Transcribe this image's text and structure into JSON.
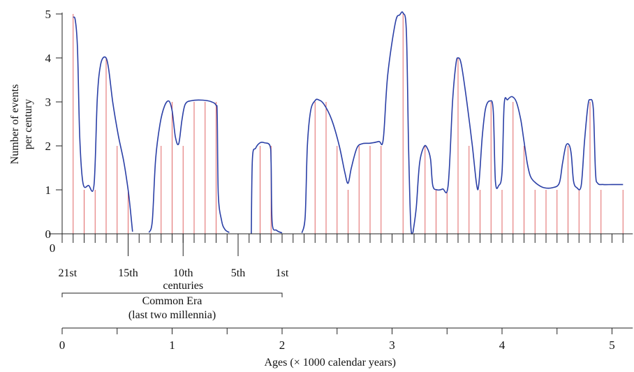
{
  "chart_data": {
    "type": "line",
    "ylabel": "Number of events per century",
    "ylabel_lines": [
      "Number of events",
      "per century"
    ],
    "xlabel": "Ages (× 1000 calendar years)",
    "ylim": [
      0,
      5
    ],
    "xlim": [
      0,
      5.1
    ],
    "yticks": [
      "0",
      "1",
      "2",
      "3",
      "4",
      "5"
    ],
    "xticks": [
      "0",
      "1",
      "2",
      "3",
      "4",
      "5"
    ],
    "century_labels": [
      {
        "x": 0.05,
        "label": "21st"
      },
      {
        "x": 0.6,
        "label": "15th"
      },
      {
        "x": 1.1,
        "label": "10th"
      },
      {
        "x": 1.6,
        "label": "5th"
      },
      {
        "x": 2.0,
        "label": "1st"
      }
    ],
    "century_axis_title": "centuries",
    "common_era_label": [
      "Common Era",
      "(last two millennia)"
    ],
    "common_era_range": [
      0,
      2.0
    ],
    "lower_axis_zero_label": "0",
    "colors": {
      "curve": "#2a3fa6",
      "bars": "#e06666",
      "axis": "#222222"
    },
    "event_bars": [
      {
        "x": 0.1,
        "v": 5
      },
      {
        "x": 0.2,
        "v": 1
      },
      {
        "x": 0.3,
        "v": 1
      },
      {
        "x": 0.4,
        "v": 4
      },
      {
        "x": 0.5,
        "v": 2
      },
      {
        "x": 0.6,
        "v": 1
      },
      {
        "x": 0.9,
        "v": 2
      },
      {
        "x": 1.0,
        "v": 3
      },
      {
        "x": 1.1,
        "v": 2
      },
      {
        "x": 1.2,
        "v": 3
      },
      {
        "x": 1.3,
        "v": 3
      },
      {
        "x": 1.4,
        "v": 3
      },
      {
        "x": 1.8,
        "v": 2
      },
      {
        "x": 1.9,
        "v": 2
      },
      {
        "x": 2.3,
        "v": 3
      },
      {
        "x": 2.4,
        "v": 3
      },
      {
        "x": 2.5,
        "v": 2
      },
      {
        "x": 2.6,
        "v": 1
      },
      {
        "x": 2.7,
        "v": 2
      },
      {
        "x": 2.8,
        "v": 2
      },
      {
        "x": 2.9,
        "v": 2
      },
      {
        "x": 3.1,
        "v": 5
      },
      {
        "x": 3.3,
        "v": 2
      },
      {
        "x": 3.4,
        "v": 1
      },
      {
        "x": 3.5,
        "v": 1
      },
      {
        "x": 3.6,
        "v": 4
      },
      {
        "x": 3.7,
        "v": 2
      },
      {
        "x": 3.8,
        "v": 1
      },
      {
        "x": 3.9,
        "v": 3
      },
      {
        "x": 4.0,
        "v": 1
      },
      {
        "x": 4.1,
        "v": 3
      },
      {
        "x": 4.2,
        "v": 2
      },
      {
        "x": 4.3,
        "v": 1
      },
      {
        "x": 4.4,
        "v": 1
      },
      {
        "x": 4.5,
        "v": 1
      },
      {
        "x": 4.6,
        "v": 2
      },
      {
        "x": 4.7,
        "v": 1
      },
      {
        "x": 4.8,
        "v": 3
      },
      {
        "x": 4.9,
        "v": 1
      },
      {
        "x": 5.1,
        "v": 1
      }
    ],
    "curve_segments": [
      [
        [
          0.1,
          4.93
        ],
        [
          0.12,
          4.85
        ],
        [
          0.14,
          4.2
        ],
        [
          0.16,
          2.2
        ],
        [
          0.19,
          1.15
        ],
        [
          0.24,
          1.1
        ],
        [
          0.29,
          1.12
        ],
        [
          0.32,
          3.1
        ],
        [
          0.35,
          3.85
        ],
        [
          0.39,
          4.02
        ],
        [
          0.42,
          3.8
        ],
        [
          0.46,
          3.0
        ],
        [
          0.51,
          2.25
        ],
        [
          0.56,
          1.65
        ],
        [
          0.6,
          1.0
        ],
        [
          0.62,
          0.55
        ],
        [
          0.64,
          0.05
        ]
      ],
      [
        [
          0.79,
          0.03
        ],
        [
          0.82,
          0.3
        ],
        [
          0.85,
          1.7
        ],
        [
          0.89,
          2.5
        ],
        [
          0.93,
          2.9
        ],
        [
          0.97,
          3.02
        ],
        [
          1.0,
          2.8
        ],
        [
          1.03,
          2.2
        ],
        [
          1.06,
          2.05
        ],
        [
          1.09,
          2.6
        ],
        [
          1.12,
          2.95
        ],
        [
          1.18,
          3.03
        ],
        [
          1.28,
          3.04
        ],
        [
          1.36,
          3.0
        ],
        [
          1.4,
          2.92
        ],
        [
          1.41,
          2.7
        ],
        [
          1.42,
          0.9
        ],
        [
          1.45,
          0.3
        ],
        [
          1.48,
          0.1
        ],
        [
          1.52,
          0.03
        ]
      ],
      [
        [
          1.72,
          0.0
        ],
        [
          1.73,
          1.7
        ],
        [
          1.76,
          1.95
        ],
        [
          1.8,
          2.07
        ],
        [
          1.84,
          2.07
        ],
        [
          1.89,
          2.0
        ],
        [
          1.9,
          1.6
        ],
        [
          1.91,
          0.25
        ],
        [
          1.95,
          0.08
        ],
        [
          2.0,
          0.02
        ]
      ],
      [
        [
          2.18,
          0.02
        ],
        [
          2.21,
          0.4
        ],
        [
          2.23,
          2.0
        ],
        [
          2.26,
          2.8
        ],
        [
          2.3,
          3.03
        ],
        [
          2.33,
          3.05
        ],
        [
          2.38,
          2.95
        ],
        [
          2.45,
          2.6
        ],
        [
          2.52,
          2.0
        ],
        [
          2.57,
          1.4
        ],
        [
          2.6,
          1.15
        ],
        [
          2.63,
          1.5
        ],
        [
          2.68,
          1.95
        ],
        [
          2.73,
          2.05
        ],
        [
          2.8,
          2.06
        ],
        [
          2.88,
          2.1
        ],
        [
          2.92,
          2.15
        ],
        [
          2.96,
          3.6
        ],
        [
          3.03,
          4.8
        ],
        [
          3.07,
          4.98
        ],
        [
          3.1,
          5.02
        ],
        [
          3.13,
          4.6
        ],
        [
          3.15,
          2.0
        ],
        [
          3.17,
          0.2
        ],
        [
          3.19,
          0.02
        ]
      ],
      [
        [
          3.19,
          0.02
        ],
        [
          3.22,
          0.6
        ],
        [
          3.25,
          1.6
        ],
        [
          3.29,
          1.98
        ],
        [
          3.32,
          1.95
        ],
        [
          3.35,
          1.7
        ],
        [
          3.37,
          1.1
        ],
        [
          3.41,
          1.0
        ],
        [
          3.46,
          1.02
        ],
        [
          3.51,
          1.1
        ],
        [
          3.55,
          3.0
        ],
        [
          3.58,
          3.85
        ],
        [
          3.6,
          4.0
        ],
        [
          3.63,
          3.85
        ],
        [
          3.68,
          3.0
        ],
        [
          3.73,
          2.0
        ],
        [
          3.77,
          1.1
        ],
        [
          3.79,
          1.15
        ],
        [
          3.82,
          2.2
        ],
        [
          3.85,
          2.85
        ],
        [
          3.89,
          3.02
        ],
        [
          3.92,
          2.8
        ],
        [
          3.94,
          1.2
        ],
        [
          3.97,
          1.1
        ],
        [
          4.0,
          1.4
        ],
        [
          4.02,
          2.95
        ],
        [
          4.05,
          3.05
        ],
        [
          4.09,
          3.12
        ],
        [
          4.13,
          3.0
        ],
        [
          4.17,
          2.6
        ],
        [
          4.2,
          2.1
        ],
        [
          4.23,
          1.6
        ],
        [
          4.26,
          1.3
        ],
        [
          4.31,
          1.15
        ],
        [
          4.38,
          1.05
        ],
        [
          4.46,
          1.05
        ],
        [
          4.52,
          1.15
        ],
        [
          4.55,
          1.6
        ],
        [
          4.58,
          2.0
        ],
        [
          4.61,
          2.02
        ],
        [
          4.63,
          1.8
        ],
        [
          4.65,
          1.2
        ],
        [
          4.68,
          1.05
        ],
        [
          4.72,
          1.1
        ],
        [
          4.75,
          2.1
        ],
        [
          4.78,
          2.9
        ],
        [
          4.8,
          3.05
        ],
        [
          4.83,
          2.85
        ],
        [
          4.85,
          1.4
        ],
        [
          4.87,
          1.15
        ],
        [
          4.92,
          1.12
        ],
        [
          5.0,
          1.12
        ],
        [
          5.1,
          1.12
        ]
      ]
    ]
  }
}
